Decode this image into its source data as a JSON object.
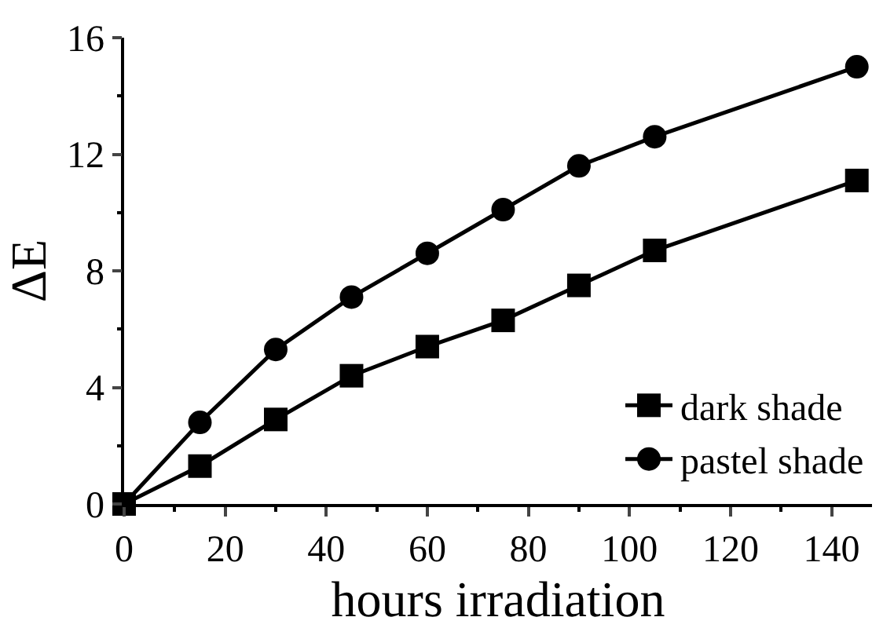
{
  "chart_data": {
    "type": "line",
    "xlabel": "hours irradiation",
    "ylabel": "ΔE",
    "x": [
      0,
      15,
      30,
      45,
      60,
      75,
      90,
      105,
      145
    ],
    "series": [
      {
        "name": "dark shade",
        "color": "#000000",
        "marker": "square",
        "values": [
          0,
          1.3,
          2.9,
          4.4,
          5.4,
          6.3,
          7.5,
          8.7,
          11.1
        ]
      },
      {
        "name": "pastel shade",
        "color": "#000000",
        "marker": "circle",
        "values": [
          0,
          2.8,
          5.3,
          7.1,
          8.6,
          10.1,
          11.6,
          12.6,
          15.0
        ]
      }
    ],
    "xlim": [
      0,
      148
    ],
    "xticks": [
      0,
      20,
      40,
      60,
      80,
      100,
      120,
      140
    ],
    "ylim": [
      0,
      16
    ],
    "yticks": [
      0,
      4,
      8,
      12,
      16
    ],
    "legend": "bottom right",
    "line_style": "solid"
  }
}
